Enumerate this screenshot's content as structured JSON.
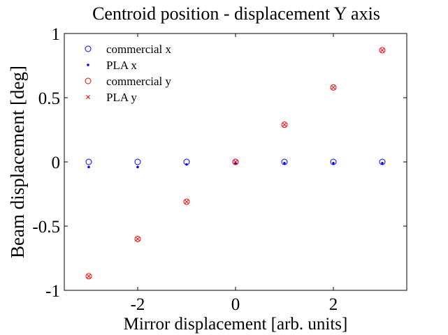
{
  "chart_data": {
    "type": "scatter",
    "title": "Centroid position - displacement Y axis",
    "xlabel": "Mirror displacement [arb. units]",
    "ylabel": "Beam displacement [deg]",
    "xlim": [
      -3.5,
      3.5
    ],
    "ylim": [
      -1,
      1
    ],
    "xticks": [
      -2,
      0,
      2
    ],
    "xtick_labels": [
      "-2",
      "0",
      "2"
    ],
    "yticks": [
      -1,
      -0.5,
      0,
      0.5,
      1
    ],
    "ytick_labels": [
      "-1",
      "-0.5",
      "0",
      "0.5",
      "1"
    ],
    "grid": false,
    "legend_position": "top-left",
    "x": [
      -3,
      -2,
      -1,
      0,
      1,
      2,
      3
    ],
    "series": [
      {
        "name": "commercial x",
        "marker": "circle",
        "color": "#0000ff",
        "values": [
          0.0,
          0.0,
          0.0,
          0.0,
          0.0,
          0.0,
          0.0
        ]
      },
      {
        "name": "PLA x",
        "marker": "dot",
        "color": "#0000ff",
        "values": [
          -0.04,
          -0.04,
          -0.02,
          -0.01,
          -0.01,
          -0.01,
          -0.01
        ]
      },
      {
        "name": "commercial y",
        "marker": "circle",
        "color": "#ff0000",
        "values": [
          -0.89,
          -0.6,
          -0.31,
          0.0,
          0.29,
          0.58,
          0.87
        ]
      },
      {
        "name": "PLA y",
        "marker": "x",
        "color": "#ff0000",
        "values": [
          -0.89,
          -0.6,
          -0.31,
          0.0,
          0.29,
          0.58,
          0.87
        ]
      }
    ]
  }
}
